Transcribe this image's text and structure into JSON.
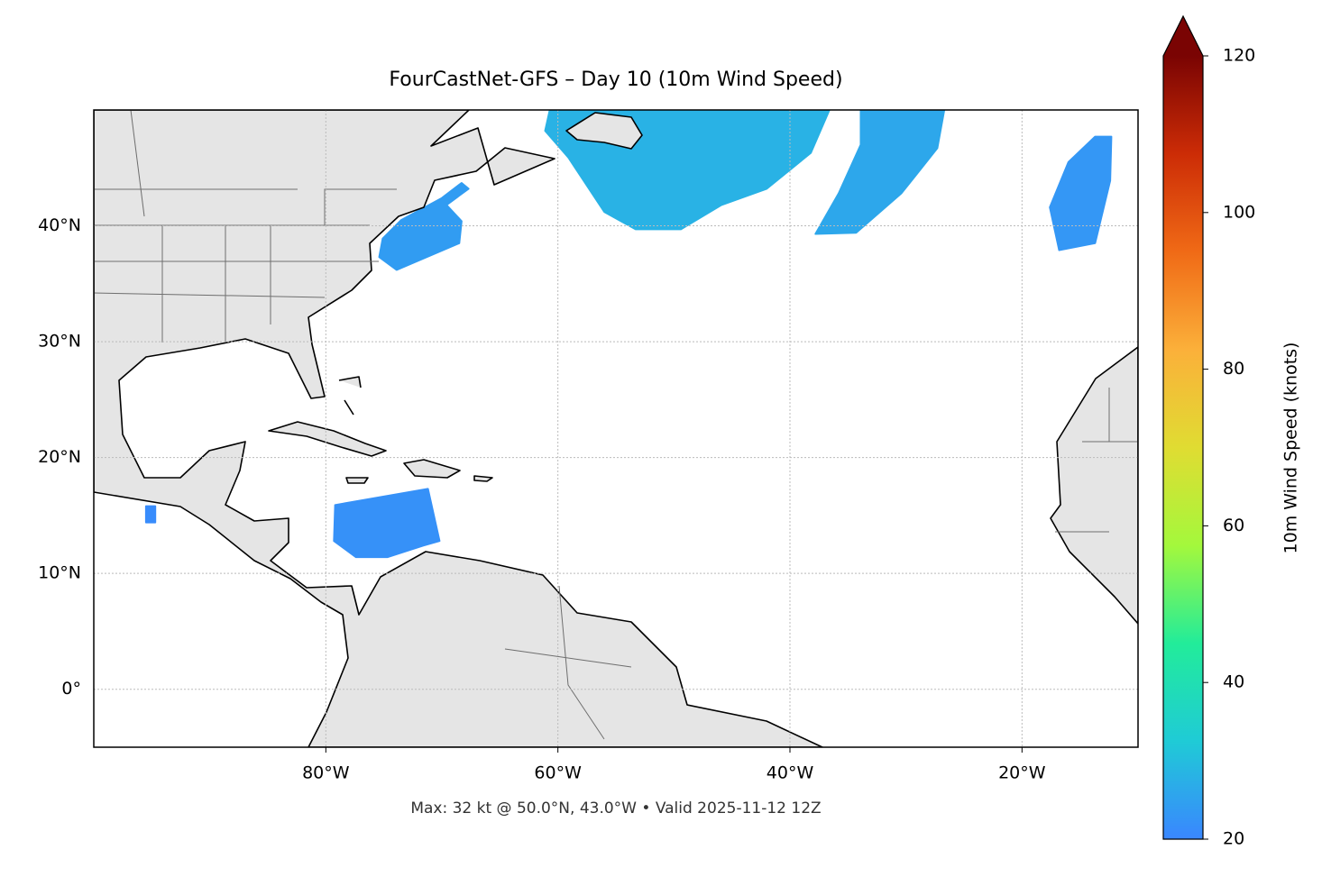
{
  "chart_data": {
    "type": "map",
    "title": "FourCastNet-GFS – Day 10 (10m Wind Speed)",
    "subtitle": "Max: 32 kt @ 50.0°N, 43.0°W • Valid 2025-11-12 12Z",
    "xlim": [
      -100,
      -10
    ],
    "ylim": [
      -5,
      50
    ],
    "xticks": [
      {
        "value": -80,
        "label": "80°W"
      },
      {
        "value": -60,
        "label": "60°W"
      },
      {
        "value": -40,
        "label": "40°W"
      },
      {
        "value": -20,
        "label": "20°W"
      }
    ],
    "yticks": [
      {
        "value": 0,
        "label": "0°"
      },
      {
        "value": 10,
        "label": "10°N"
      },
      {
        "value": 20,
        "label": "20°N"
      },
      {
        "value": 30,
        "label": "30°N"
      },
      {
        "value": 40,
        "label": "40°N"
      }
    ],
    "grid": true,
    "colorbar": {
      "label": "10m Wind Speed (knots)",
      "lim": [
        20,
        120
      ],
      "ticks": [
        20,
        40,
        60,
        80,
        100,
        120
      ],
      "colors": [
        "#3a86ff",
        "#1fcbd6",
        "#22ec9a",
        "#a4f83c",
        "#e0dc32",
        "#fbb03a",
        "#f06a16",
        "#cc2c06",
        "#7a0403"
      ],
      "extend": "max"
    },
    "wind_areas": [
      {
        "value": 24,
        "lon": [
          -75.4,
          -73.9,
          -68.5,
          -68.3,
          -69.6,
          -67.7,
          -68.3,
          -70.0,
          -73.5,
          -75.1
        ],
        "lat": [
          37.3,
          36.2,
          38.5,
          40.4,
          41.8,
          43.2,
          43.7,
          42.4,
          40.5,
          38.9
        ]
      },
      {
        "value": 28,
        "lon": [
          -60.7,
          -61.1,
          -59.1,
          -56.0,
          -53.3,
          -49.4,
          -45.9,
          -42.0,
          -38.2,
          -36.6
        ],
        "lat": [
          50,
          48.2,
          45.9,
          41.2,
          39.7,
          39.7,
          41.8,
          43.2,
          46.3,
          50
        ]
      },
      {
        "value": 26,
        "lon": [
          -33.9,
          -26.7,
          -27.3,
          -30.4,
          -34.3,
          -37.8,
          -35.8,
          -33.9
        ],
        "lat": [
          50,
          50,
          46.7,
          42.8,
          39.4,
          39.3,
          42.8,
          47.0
        ]
      },
      {
        "value": 23,
        "lon": [
          -13.7,
          -12.3,
          -12.4,
          -13.7,
          -16.8,
          -17.6,
          -16.0
        ],
        "lat": [
          47.7,
          47.7,
          43.9,
          38.5,
          37.9,
          41.6,
          45.5
        ]
      },
      {
        "value": 22,
        "lon": [
          -79.2,
          -71.2,
          -70.2,
          -71.6,
          -74.7,
          -77.4,
          -79.3
        ],
        "lat": [
          15.9,
          17.3,
          12.8,
          12.4,
          11.4,
          11.4,
          12.8
        ]
      },
      {
        "value": 21,
        "lon": [
          -95.5,
          -94.7,
          -94.7,
          -95.5
        ],
        "lat": [
          15.8,
          15.8,
          14.4,
          14.4
        ]
      }
    ]
  }
}
